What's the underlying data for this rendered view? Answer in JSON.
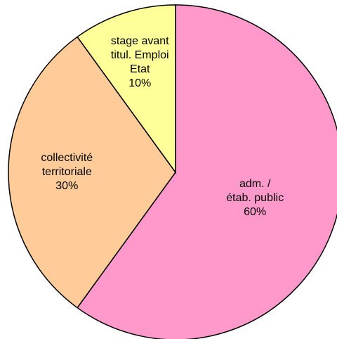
{
  "chart_data": {
    "type": "pie",
    "categories": [
      [
        "adm. /",
        "étab. public"
      ],
      [
        "collectivité",
        "territoriale"
      ],
      [
        "stage avant",
        "titul. Emploi",
        "Etat"
      ]
    ],
    "values": [
      60,
      30,
      10
    ],
    "value_labels": [
      "60%",
      "30%",
      "10%"
    ],
    "colors": [
      "#ff99cc",
      "#ffcc99",
      "#ffff99"
    ]
  }
}
